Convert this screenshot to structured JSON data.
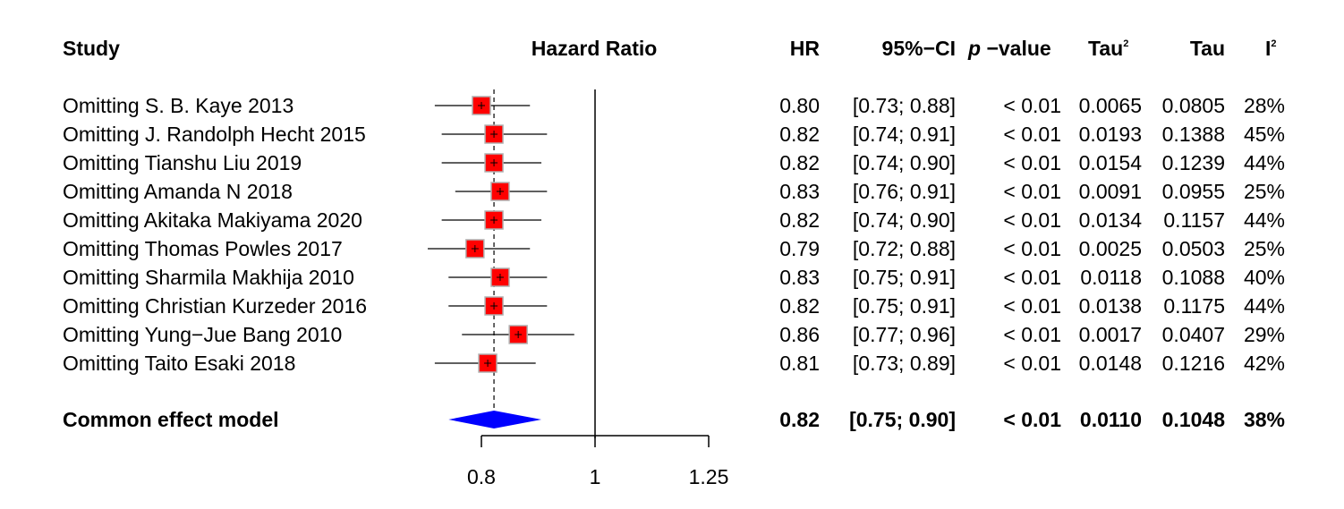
{
  "chart_data": {
    "type": "forest",
    "headers": {
      "study": "Study",
      "plot": "Hazard Ratio",
      "hr": "HR",
      "ci": "95%−CI",
      "p_italic": "p",
      "p_rest": " −value",
      "tau2_base": "Tau",
      "tau2_sup": "2",
      "tau": "Tau",
      "i2_base": "I",
      "i2_sup": "2"
    },
    "rows": [
      {
        "label": "Omitting S. B. Kaye 2013",
        "hr": 0.8,
        "lo": 0.73,
        "hi": 0.88,
        "hr_text": "0.80",
        "ci_text": "[0.73; 0.88]",
        "p": "< 0.01",
        "tau2": "0.0065",
        "tau": "0.0805",
        "i2": "28%"
      },
      {
        "label": "Omitting J. Randolph Hecht 2015",
        "hr": 0.82,
        "lo": 0.74,
        "hi": 0.91,
        "hr_text": "0.82",
        "ci_text": "[0.74; 0.91]",
        "p": "< 0.01",
        "tau2": "0.0193",
        "tau": "0.1388",
        "i2": "45%"
      },
      {
        "label": "Omitting Tianshu Liu 2019",
        "hr": 0.82,
        "lo": 0.74,
        "hi": 0.9,
        "hr_text": "0.82",
        "ci_text": "[0.74; 0.90]",
        "p": "< 0.01",
        "tau2": "0.0154",
        "tau": "0.1239",
        "i2": "44%"
      },
      {
        "label": "Omitting Amanda N 2018",
        "hr": 0.83,
        "lo": 0.76,
        "hi": 0.91,
        "hr_text": "0.83",
        "ci_text": "[0.76; 0.91]",
        "p": "< 0.01",
        "tau2": "0.0091",
        "tau": "0.0955",
        "i2": "25%"
      },
      {
        "label": "Omitting Akitaka Makiyama 2020",
        "hr": 0.82,
        "lo": 0.74,
        "hi": 0.9,
        "hr_text": "0.82",
        "ci_text": "[0.74; 0.90]",
        "p": "< 0.01",
        "tau2": "0.0134",
        "tau": "0.1157",
        "i2": "44%"
      },
      {
        "label": "Omitting Thomas Powles 2017",
        "hr": 0.79,
        "lo": 0.72,
        "hi": 0.88,
        "hr_text": "0.79",
        "ci_text": "[0.72; 0.88]",
        "p": "< 0.01",
        "tau2": "0.0025",
        "tau": "0.0503",
        "i2": "25%"
      },
      {
        "label": "Omitting Sharmila Makhija 2010",
        "hr": 0.83,
        "lo": 0.75,
        "hi": 0.91,
        "hr_text": "0.83",
        "ci_text": "[0.75; 0.91]",
        "p": "< 0.01",
        "tau2": "0.0118",
        "tau": "0.1088",
        "i2": "40%"
      },
      {
        "label": "Omitting Christian Kurzeder 2016",
        "hr": 0.82,
        "lo": 0.75,
        "hi": 0.91,
        "hr_text": "0.82",
        "ci_text": "[0.75; 0.91]",
        "p": "< 0.01",
        "tau2": "0.0138",
        "tau": "0.1175",
        "i2": "44%"
      },
      {
        "label": "Omitting Yung−Jue Bang  2010",
        "hr": 0.86,
        "lo": 0.77,
        "hi": 0.96,
        "hr_text": "0.86",
        "ci_text": "[0.77; 0.96]",
        "p": "< 0.01",
        "tau2": "0.0017",
        "tau": "0.0407",
        "i2": "29%"
      },
      {
        "label": "Omitting Taito Esaki 2018",
        "hr": 0.81,
        "lo": 0.73,
        "hi": 0.89,
        "hr_text": "0.81",
        "ci_text": "[0.73; 0.89]",
        "p": "< 0.01",
        "tau2": "0.0148",
        "tau": "0.1216",
        "i2": "42%"
      }
    ],
    "summary": {
      "label": "Common effect model",
      "hr": 0.82,
      "lo": 0.75,
      "hi": 0.9,
      "hr_text": "0.82",
      "ci_text": "[0.75; 0.90]",
      "p": "< 0.01",
      "tau2": "0.0110",
      "tau": "0.1048",
      "i2": "38%"
    },
    "x_axis": {
      "scale": "log",
      "ticks": [
        0.8,
        1,
        1.25
      ],
      "tick_labels": [
        "0.8",
        "1",
        "1.25"
      ],
      "range": [
        0.8,
        1.25
      ],
      "reference": 1
    },
    "colors": {
      "square": "#ff0000",
      "square_border": "#b0b0b0",
      "diamond": "#0000ff",
      "line": "#000000"
    }
  }
}
